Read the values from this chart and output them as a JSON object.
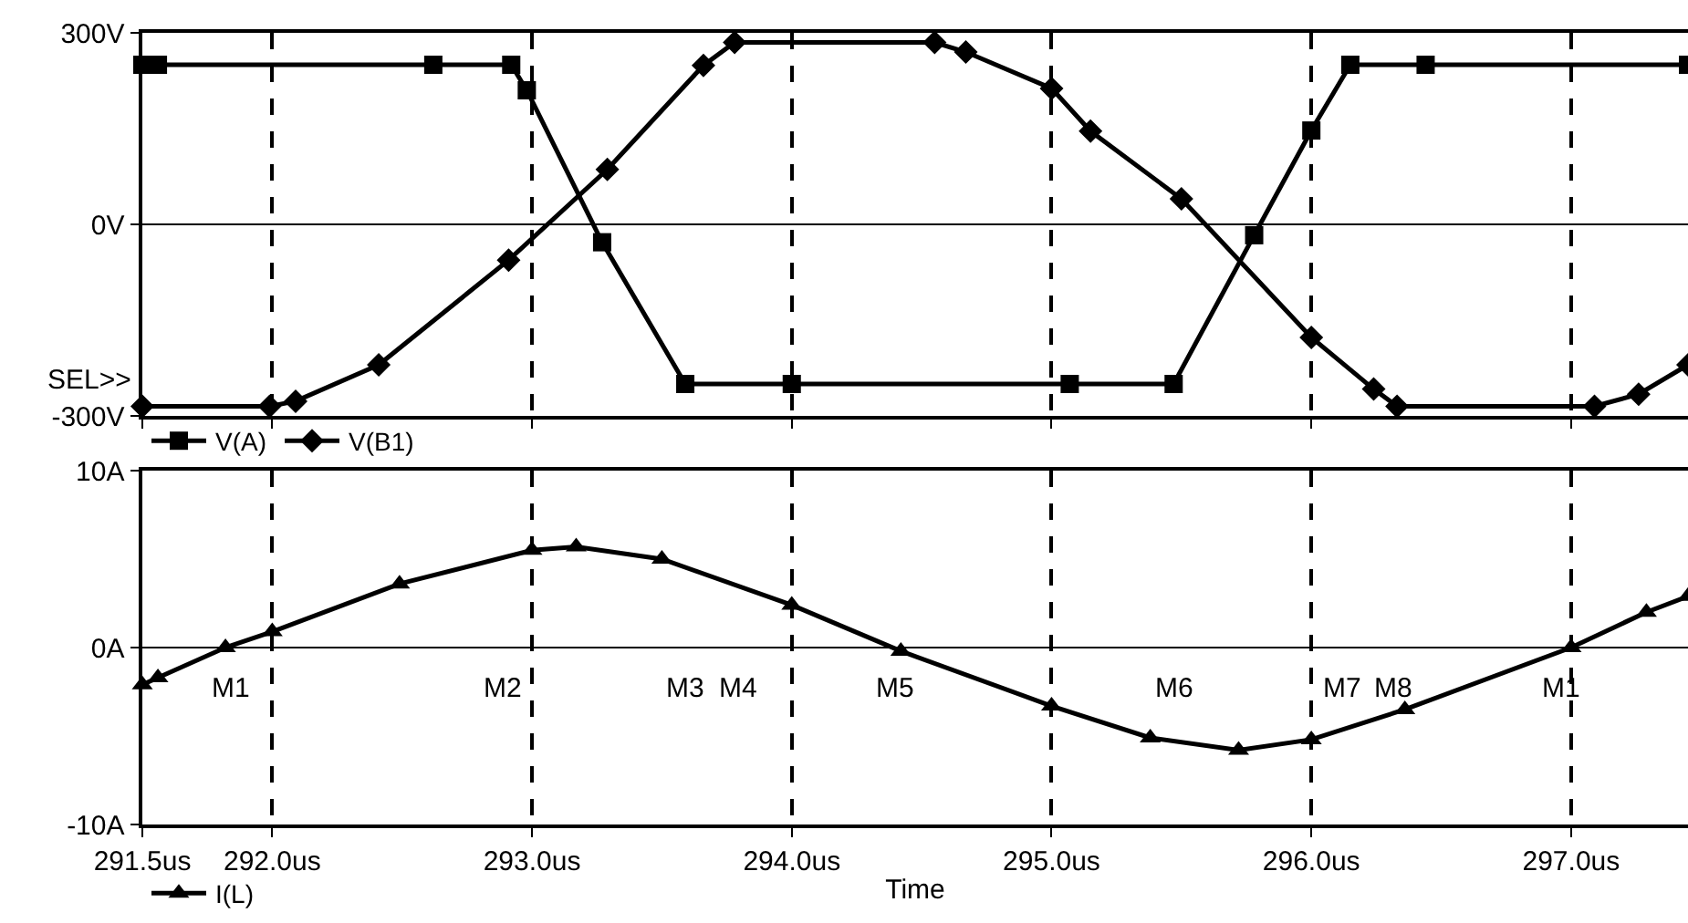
{
  "chart_data": [
    {
      "type": "line",
      "annotations": [
        "SEL>>"
      ],
      "xlim": [
        291.5,
        297.45
      ],
      "xticks": [
        {
          "value": 291.5,
          "label": null
        },
        {
          "value": 292,
          "label": null
        },
        {
          "value": 293,
          "label": null
        },
        {
          "value": 294,
          "label": null
        },
        {
          "value": 295,
          "label": null
        },
        {
          "value": 296,
          "label": null
        },
        {
          "value": 297,
          "label": null
        }
      ],
      "ylim": [
        -300,
        300
      ],
      "yticks": [
        {
          "value": -300,
          "label": "-300V"
        },
        {
          "value": 0,
          "label": "0V"
        },
        {
          "value": 300,
          "label": "300V"
        }
      ],
      "tick_labels": "y",
      "grid": true,
      "legend": "bottom left",
      "line_style": "solid",
      "series": [
        {
          "name": "V(A)",
          "color": "#000000",
          "marker": "square",
          "x": [
            291.5,
            291.56,
            292.62,
            292.92,
            292.98,
            293.27,
            293.59,
            294.0,
            295.07,
            295.47,
            295.78,
            296.0,
            296.15,
            296.44,
            297.45
          ],
          "values": [
            250,
            250,
            250,
            250,
            210,
            -28,
            -250,
            -250,
            -250,
            -250,
            -17,
            147,
            250,
            250,
            250
          ]
        },
        {
          "name": "V(B1)",
          "color": "#000000",
          "marker": "diamond",
          "x": [
            291.5,
            291.99,
            292.09,
            292.41,
            292.91,
            293.29,
            293.66,
            293.78,
            294.55,
            294.67,
            295.0,
            295.15,
            295.5,
            296.0,
            296.24,
            296.33,
            297.09,
            297.26,
            297.45
          ],
          "values": [
            -285,
            -285,
            -277,
            -220,
            -56,
            86,
            249,
            285,
            285,
            270,
            213,
            146,
            40,
            -177,
            -258,
            -285,
            -285,
            -266,
            -220
          ]
        }
      ]
    },
    {
      "type": "line",
      "xlabel": "Time",
      "xlim": [
        291.5,
        297.45
      ],
      "xticks": [
        {
          "value": 291.5,
          "label": "291.5us"
        },
        {
          "value": 292,
          "label": "292.0us"
        },
        {
          "value": 293,
          "label": "293.0us"
        },
        {
          "value": 294,
          "label": "294.0us"
        },
        {
          "value": 295,
          "label": "295.0us"
        },
        {
          "value": 296,
          "label": "296.0us"
        },
        {
          "value": 297,
          "label": "297.0us"
        }
      ],
      "ylim": [
        -10,
        10
      ],
      "yticks": [
        {
          "value": -10,
          "label": "-10A"
        },
        {
          "value": 0,
          "label": "0A"
        },
        {
          "value": 10,
          "label": "10A"
        }
      ],
      "grid": true,
      "legend": "bottom left",
      "line_style": "solid",
      "annotations": [
        "M1",
        "M2",
        "M3",
        "M4",
        "M5",
        "M6",
        "M7",
        "M8",
        "M1"
      ],
      "series": [
        {
          "name": "I(L)",
          "color": "#000000",
          "marker": "triangle",
          "x": [
            291.5,
            291.56,
            291.82,
            292.0,
            292.49,
            293.0,
            293.17,
            293.5,
            294.0,
            294.42,
            295.0,
            295.38,
            295.72,
            296.0,
            296.36,
            297.0,
            297.29,
            297.45
          ],
          "values": [
            -2.1,
            -1.7,
            0,
            0.9,
            3.6,
            5.5,
            5.7,
            5.0,
            2.4,
            -0.2,
            -3.3,
            -5.1,
            -5.8,
            -5.2,
            -3.5,
            0,
            2.0,
            2.9
          ]
        }
      ]
    }
  ]
}
